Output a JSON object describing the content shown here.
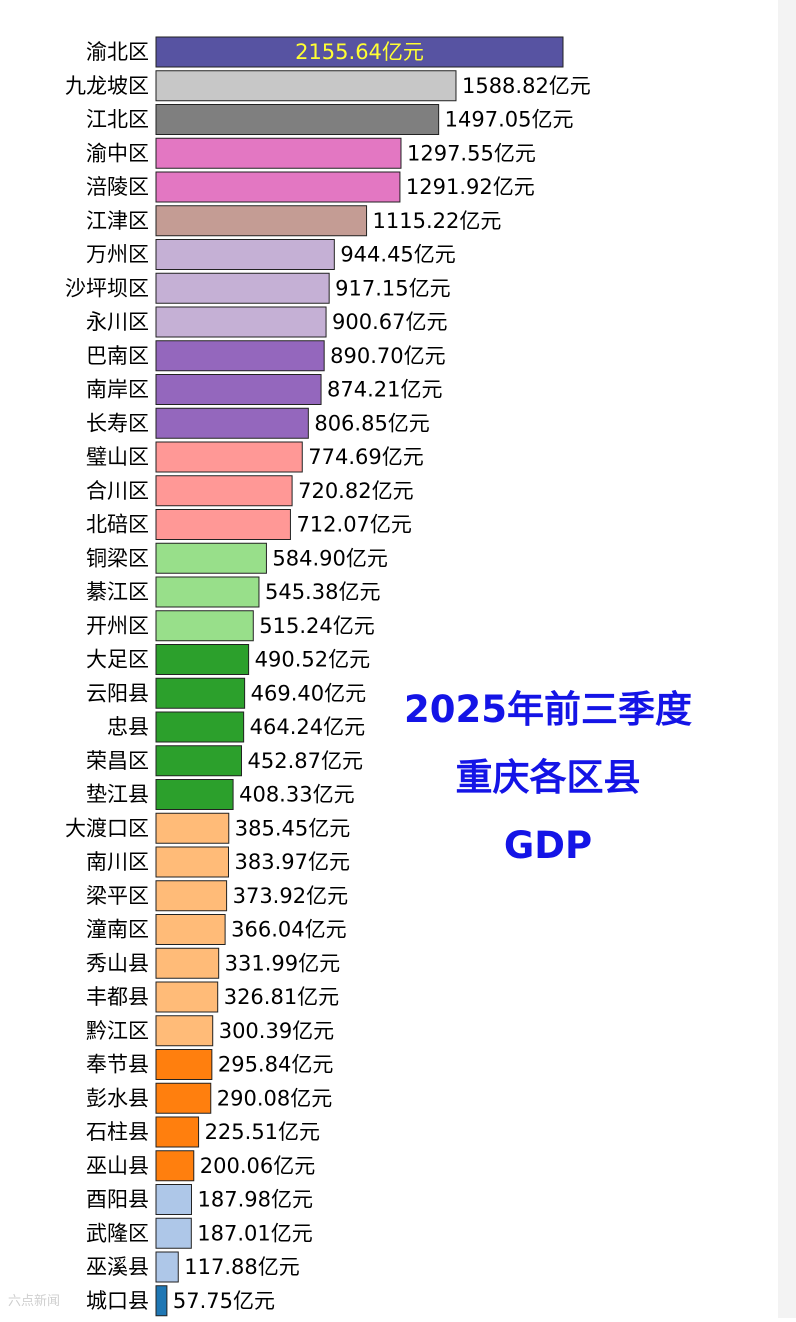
{
  "chart_data": {
    "type": "bar",
    "orientation": "horizontal",
    "title_lines": [
      "2025年前三季度",
      "重庆各区县",
      "GDP"
    ],
    "unit_suffix": "亿元",
    "colors": {
      "title": "#1414e6",
      "inside_label": "#ffff33",
      "bar_edge": "#222222"
    },
    "categories": [
      "渝北区",
      "九龙坡区",
      "江北区",
      "渝中区",
      "涪陵区",
      "江津区",
      "万州区",
      "沙坪坝区",
      "永川区",
      "巴南区",
      "南岸区",
      "长寿区",
      "璧山区",
      "合川区",
      "北碚区",
      "铜梁区",
      "綦江区",
      "开州区",
      "大足区",
      "云阳县",
      "忠县",
      "荣昌区",
      "垫江县",
      "大渡口区",
      "南川区",
      "梁平区",
      "潼南区",
      "秀山县",
      "丰都县",
      "黔江区",
      "奉节县",
      "彭水县",
      "石柱县",
      "巫山县",
      "酉阳县",
      "武隆区",
      "巫溪县",
      "城口县"
    ],
    "value_labels": [
      "2155.64",
      "1588.82",
      "1497.05",
      "1297.55",
      "1291.92",
      "1115.22",
      "944.45",
      "917.15",
      "900.67",
      "890.70",
      "874.21",
      "806.85",
      "774.69",
      "720.82",
      "712.07",
      "584.90",
      "545.38",
      "515.24",
      "490.52",
      "469.40",
      "464.24",
      "452.87",
      "408.33",
      "385.45",
      "383.97",
      "373.92",
      "366.04",
      "331.99",
      "326.81",
      "300.39",
      "295.84",
      "290.08",
      "225.51",
      "200.06",
      "187.98",
      "187.01",
      "117.88",
      "57.75"
    ],
    "values": [
      2155.64,
      1588.82,
      1497.05,
      1297.55,
      1291.92,
      1115.22,
      944.45,
      917.15,
      900.67,
      890.7,
      874.21,
      806.85,
      774.69,
      720.82,
      712.07,
      584.9,
      545.38,
      515.24,
      490.52,
      469.4,
      464.24,
      452.87,
      408.33,
      385.45,
      383.97,
      373.92,
      366.04,
      331.99,
      326.81,
      300.39,
      295.84,
      290.08,
      225.51,
      200.06,
      187.98,
      187.01,
      117.88,
      57.75
    ],
    "bar_colors": [
      "#5753a2",
      "#c7c7c7",
      "#7f7f7f",
      "#e377c2",
      "#e377c2",
      "#c49c94",
      "#c5b0d5",
      "#c5b0d5",
      "#c5b0d5",
      "#9467bd",
      "#9467bd",
      "#9467bd",
      "#ff9896",
      "#ff9896",
      "#ff9896",
      "#98df8a",
      "#98df8a",
      "#98df8a",
      "#2ca02c",
      "#2ca02c",
      "#2ca02c",
      "#2ca02c",
      "#2ca02c",
      "#ffbb78",
      "#ffbb78",
      "#ffbb78",
      "#ffbb78",
      "#ffbb78",
      "#ffbb78",
      "#ffbb78",
      "#ff7f0e",
      "#ff7f0e",
      "#ff7f0e",
      "#ff7f0e",
      "#aec7e8",
      "#aec7e8",
      "#aec7e8",
      "#1f77b4"
    ],
    "label_inside_first_bar": true,
    "grid": false,
    "legend": "none"
  },
  "watermark": "六点新闻"
}
